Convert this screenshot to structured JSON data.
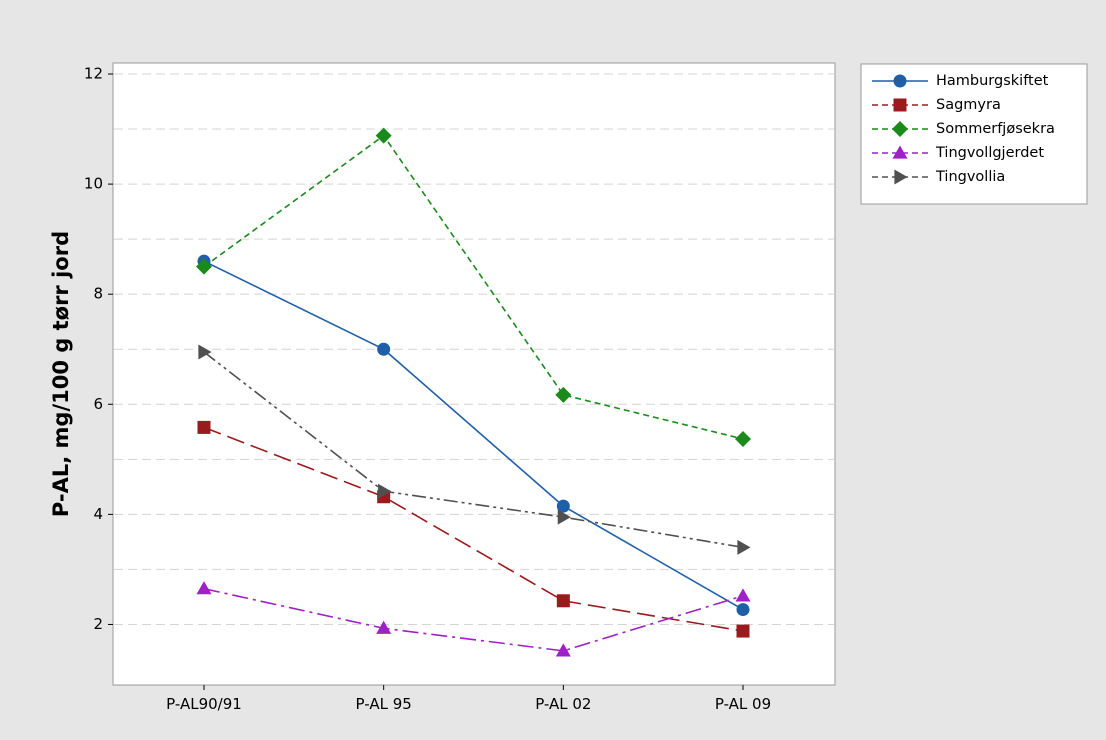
{
  "chart_data": {
    "type": "line",
    "categories": [
      "P-AL90/91",
      "P-AL 95",
      "P-AL 02",
      "P-AL 09"
    ],
    "ylabel": "P-AL, mg/100 g tørr jord",
    "xlabel": "",
    "ylim": [
      0.9,
      12.2
    ],
    "yticks": [
      2,
      4,
      6,
      8,
      10,
      12
    ],
    "grid": true,
    "legend_position": "top-right outside",
    "series": [
      {
        "name": "Hamburgskiftet",
        "values": [
          8.6,
          7.0,
          4.15,
          2.27
        ],
        "color": "#1f5fa8",
        "marker": "circle",
        "dash": "solid"
      },
      {
        "name": "Sagmyra",
        "values": [
          5.58,
          4.32,
          2.43,
          1.88
        ],
        "color": "#9a1b1e",
        "marker": "square",
        "dash": "longdash"
      },
      {
        "name": "Sommerfjøsekra",
        "values": [
          8.5,
          10.88,
          6.17,
          5.37
        ],
        "color": "#1a8a1a",
        "marker": "diamond",
        "dash": "dash"
      },
      {
        "name": "Tingvollgjerdet",
        "values": [
          2.65,
          1.93,
          1.52,
          2.52
        ],
        "color": "#a020c8",
        "marker": "triangle-up",
        "dash": "dashdot"
      },
      {
        "name": "Tingvollia",
        "values": [
          6.95,
          4.42,
          3.95,
          3.4
        ],
        "color": "#505050",
        "marker": "triangle-right",
        "dash": "dashdotdot"
      }
    ]
  }
}
